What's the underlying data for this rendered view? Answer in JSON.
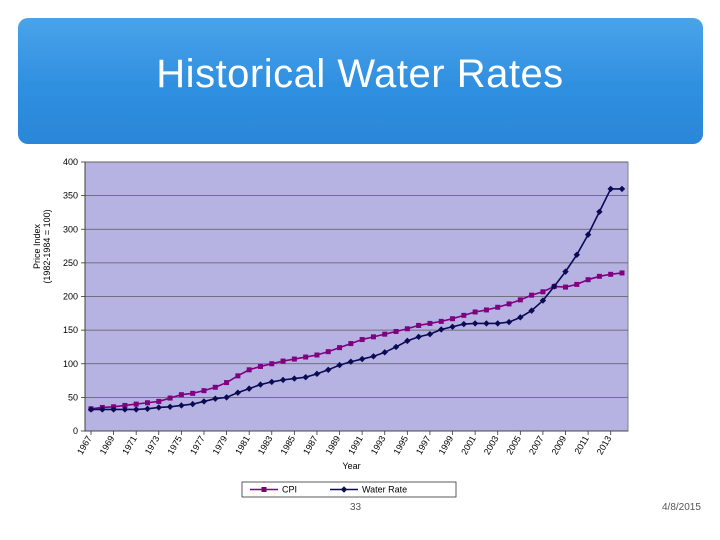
{
  "slide": {
    "title": "Historical Water Rates",
    "page_number": "33",
    "date": "4/8/2015"
  },
  "colors": {
    "header": "#2f8fe0",
    "plot_bg": "#b6b3e3",
    "cpi": "#800080",
    "water": "#0a0a55"
  },
  "chart_data": {
    "type": "line",
    "title": "",
    "xlabel": "Year",
    "ylabel": "Price Index (1982-1984 = 100)",
    "ylabel_lines": [
      "Price Index",
      "(1982-1984 = 100)"
    ],
    "ylim": [
      0,
      400
    ],
    "yticks": [
      0,
      50,
      100,
      150,
      200,
      250,
      300,
      350,
      400
    ],
    "x": [
      1967,
      1968,
      1969,
      1970,
      1971,
      1972,
      1973,
      1974,
      1975,
      1976,
      1977,
      1978,
      1979,
      1980,
      1981,
      1982,
      1983,
      1984,
      1985,
      1986,
      1987,
      1988,
      1989,
      1990,
      1991,
      1992,
      1993,
      1994,
      1995,
      1996,
      1997,
      1998,
      1999,
      2000,
      2001,
      2002,
      2003,
      2004,
      2005,
      2006,
      2007,
      2008,
      2009,
      2010,
      2011,
      2012,
      2013,
      2014
    ],
    "xtick_labels": [
      "1967",
      "1969",
      "1971",
      "1973",
      "1975",
      "1977",
      "1979",
      "1981",
      "1983",
      "1985",
      "1987",
      "1989",
      "1991",
      "1993",
      "1995",
      "1997",
      "1999",
      "2001",
      "2003",
      "2005",
      "2007",
      "2009",
      "2011",
      "2013"
    ],
    "legend_position": "bottom",
    "series": [
      {
        "name": "CPI",
        "marker": "square",
        "values": [
          33,
          35,
          36,
          38,
          40,
          42,
          44,
          49,
          54,
          56,
          60,
          65,
          72,
          82,
          91,
          96,
          100,
          104,
          107,
          110,
          113,
          118,
          124,
          130,
          136,
          140,
          144,
          148,
          152,
          157,
          160,
          163,
          167,
          172,
          177,
          180,
          184,
          189,
          195,
          202,
          207,
          215,
          214,
          218,
          225,
          230,
          233,
          235
        ]
      },
      {
        "name": "Water Rate",
        "marker": "diamond",
        "values": [
          32,
          32,
          32,
          32,
          32,
          33,
          35,
          36,
          38,
          40,
          44,
          48,
          50,
          57,
          63,
          69,
          73,
          76,
          78,
          80,
          85,
          91,
          98,
          103,
          107,
          111,
          117,
          125,
          134,
          140,
          144,
          151,
          155,
          159,
          160,
          160,
          160,
          162,
          169,
          179,
          194,
          215,
          237,
          262,
          292,
          326,
          360,
          360
        ]
      }
    ]
  }
}
